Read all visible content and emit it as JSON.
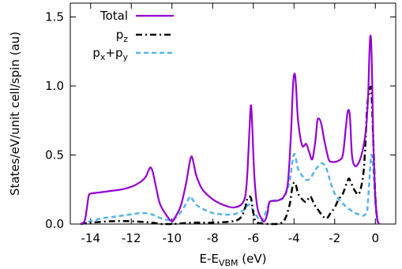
{
  "chart_data": {
    "type": "line",
    "title": "",
    "xlabel": {
      "main": "E-E",
      "sub": "VBM",
      "unit": " (eV)"
    },
    "ylabel": "States/eV/unit cell/spin (au)",
    "xlim": [
      -15,
      1
    ],
    "ylim": [
      0,
      1.6
    ],
    "xticks": [
      -14,
      -12,
      -10,
      -8,
      -6,
      -4,
      -2,
      0
    ],
    "xtick_labels": [
      "-14",
      "-12",
      "-10",
      "-8",
      "-6",
      "-4",
      "-2",
      "0"
    ],
    "yticks": [
      0,
      0.5,
      1,
      1.5
    ],
    "ytick_labels": [
      "0.0",
      "0.5",
      "1.0",
      "1.5"
    ],
    "grid": false,
    "legend_position": "top-left",
    "series": [
      {
        "name": "Total",
        "legend": {
          "main": "Total",
          "sub": "",
          "tail": ""
        },
        "color": "#9400d3",
        "dash": "solid",
        "x": [
          -14.5,
          -14.3,
          -14.2,
          -14.1,
          -14.0,
          -13.5,
          -13.0,
          -12.5,
          -12.0,
          -11.6,
          -11.3,
          -11.15,
          -11.05,
          -10.95,
          -10.8,
          -10.6,
          -10.3,
          -10.0,
          -9.8,
          -9.55,
          -9.3,
          -9.15,
          -9.05,
          -8.95,
          -8.8,
          -8.5,
          -8.0,
          -7.5,
          -7.0,
          -6.6,
          -6.4,
          -6.3,
          -6.2,
          -6.12,
          -6.05,
          -5.95,
          -5.8,
          -5.6,
          -5.45,
          -5.3,
          -5.2,
          -4.8,
          -4.5,
          -4.3,
          -4.15,
          -4.05,
          -3.97,
          -3.9,
          -3.8,
          -3.6,
          -3.4,
          -3.25,
          -3.1,
          -2.95,
          -2.85,
          -2.75,
          -2.65,
          -2.5,
          -2.3,
          -2.15,
          -2.0,
          -1.8,
          -1.6,
          -1.45,
          -1.35,
          -1.25,
          -1.15,
          -1.0,
          -0.8,
          -0.6,
          -0.45,
          -0.35,
          -0.3,
          -0.25,
          -0.2,
          -0.15,
          -0.1,
          0.0,
          0.1,
          0.2
        ],
        "y": [
          0,
          0.02,
          0.1,
          0.2,
          0.22,
          0.23,
          0.24,
          0.25,
          0.27,
          0.3,
          0.34,
          0.39,
          0.41,
          0.38,
          0.28,
          0.15,
          0.07,
          0.02,
          0.06,
          0.14,
          0.3,
          0.43,
          0.49,
          0.45,
          0.35,
          0.25,
          0.18,
          0.14,
          0.12,
          0.14,
          0.2,
          0.35,
          0.65,
          0.86,
          0.7,
          0.35,
          0.12,
          0.04,
          0.02,
          0.08,
          0.16,
          0.17,
          0.2,
          0.3,
          0.65,
          1.0,
          1.09,
          1.0,
          0.75,
          0.57,
          0.58,
          0.52,
          0.47,
          0.6,
          0.75,
          0.76,
          0.72,
          0.6,
          0.47,
          0.45,
          0.45,
          0.46,
          0.5,
          0.7,
          0.82,
          0.78,
          0.5,
          0.42,
          0.45,
          0.55,
          0.7,
          0.95,
          1.2,
          1.36,
          1.3,
          1.0,
          0.6,
          0.2,
          0.03,
          0
        ]
      },
      {
        "name": "pz",
        "legend": {
          "main": "p",
          "sub": "z",
          "tail": ""
        },
        "color": "#000000",
        "dash": "dashdot",
        "x": [
          -14.5,
          -14.0,
          -13.0,
          -12.0,
          -11.0,
          -10.5,
          -10.0,
          -9.0,
          -8.0,
          -7.0,
          -6.6,
          -6.4,
          -6.3,
          -6.2,
          -6.1,
          -6.0,
          -5.8,
          -5.0,
          -4.6,
          -4.4,
          -4.2,
          -4.1,
          -4.0,
          -3.9,
          -3.8,
          -3.6,
          -3.4,
          -3.2,
          -3.0,
          -2.8,
          -2.6,
          -2.4,
          -2.2,
          -2.0,
          -1.8,
          -1.6,
          -1.4,
          -1.3,
          -1.2,
          -1.0,
          -0.8,
          -0.6,
          -0.5,
          -0.4,
          -0.3,
          -0.2,
          -0.1,
          0.0,
          0.1,
          0.2
        ],
        "y": [
          0,
          0.01,
          0.02,
          0.02,
          0.01,
          0.0,
          0.0,
          0.01,
          0.01,
          0.02,
          0.05,
          0.12,
          0.18,
          0.2,
          0.18,
          0.08,
          0.01,
          0.0,
          0.01,
          0.05,
          0.15,
          0.25,
          0.3,
          0.28,
          0.22,
          0.18,
          0.16,
          0.2,
          0.14,
          0.1,
          0.06,
          0.04,
          0.08,
          0.12,
          0.18,
          0.22,
          0.3,
          0.33,
          0.3,
          0.24,
          0.22,
          0.35,
          0.55,
          0.85,
          0.95,
          0.97,
          0.6,
          0.2,
          0.03,
          0
        ]
      },
      {
        "name": "px+py",
        "legend": {
          "main": "p",
          "sub": "x",
          "tail": "+p",
          "sub2": "y"
        },
        "color": "#56b4e9",
        "dash": "dashed",
        "x": [
          -14.5,
          -14.0,
          -13.5,
          -13.0,
          -12.5,
          -12.0,
          -11.5,
          -11.0,
          -10.5,
          -10.0,
          -9.6,
          -9.3,
          -9.1,
          -9.0,
          -8.8,
          -8.5,
          -8.0,
          -7.5,
          -7.0,
          -6.6,
          -6.4,
          -6.3,
          -6.2,
          -6.0,
          -5.8,
          -5.6,
          -5.4,
          -5.2,
          -5.0,
          -4.6,
          -4.4,
          -4.2,
          -4.05,
          -3.95,
          -3.8,
          -3.6,
          -3.4,
          -3.2,
          -3.0,
          -2.8,
          -2.6,
          -2.4,
          -2.2,
          -2.0,
          -1.8,
          -1.6,
          -1.4,
          -1.2,
          -1.0,
          -0.8,
          -0.6,
          -0.5,
          -0.4,
          -0.3,
          -0.2,
          -0.1,
          0.0,
          0.1,
          0.2
        ],
        "y": [
          0,
          0.02,
          0.04,
          0.05,
          0.06,
          0.07,
          0.08,
          0.07,
          0.04,
          0.03,
          0.08,
          0.15,
          0.2,
          0.18,
          0.14,
          0.11,
          0.08,
          0.07,
          0.07,
          0.09,
          0.11,
          0.13,
          0.14,
          0.1,
          0.05,
          0.02,
          0.08,
          0.15,
          0.17,
          0.18,
          0.22,
          0.32,
          0.48,
          0.5,
          0.4,
          0.35,
          0.32,
          0.33,
          0.38,
          0.42,
          0.44,
          0.4,
          0.3,
          0.22,
          0.18,
          0.15,
          0.12,
          0.1,
          0.08,
          0.07,
          0.06,
          0.07,
          0.1,
          0.3,
          0.5,
          0.4,
          0.15,
          0.03,
          0
        ]
      }
    ]
  }
}
